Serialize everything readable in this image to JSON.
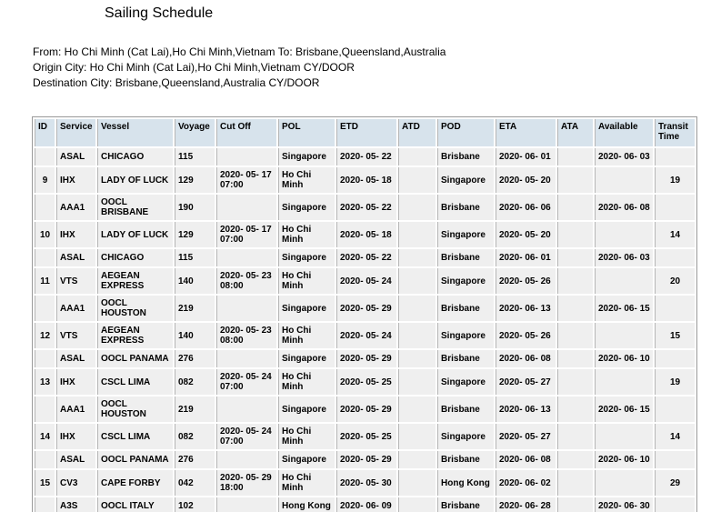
{
  "title": "Sailing Schedule",
  "route_info": {
    "from_to": "From: Ho Chi Minh (Cat Lai),Ho Chi Minh,Vietnam To: Brisbane,Queensland,Australia",
    "origin_city": "Origin City: Ho Chi Minh (Cat Lai),Ho Chi Minh,Vietnam CY/DOOR",
    "destination_city": "Destination City: Brisbane,Queensland,Australia CY/DOOR"
  },
  "colors": {
    "header_bg": "#d7e3ec",
    "cell_bg": "#efefef",
    "grid_line": "#b5b5b5",
    "outer_border": "#9a9a9a"
  },
  "table": {
    "columns": [
      "ID",
      "Service",
      "Vessel",
      "Voyage",
      "Cut Off",
      "POL",
      "ETD",
      "ATD",
      "POD",
      "ETA",
      "ATA",
      "Available",
      "Transit Time"
    ],
    "column_keys": [
      "id",
      "service",
      "vessel",
      "voyage",
      "cut-off",
      "pol",
      "etd",
      "atd",
      "pod",
      "eta",
      "ata",
      "available",
      "transit-time"
    ],
    "rows": [
      [
        "",
        "ASAL",
        "CHICAGO",
        "115",
        "",
        "Singapore",
        "2020- 05- 22",
        "",
        "Brisbane",
        "2020- 06- 01",
        "",
        "2020- 06- 03",
        ""
      ],
      [
        "9",
        "IHX",
        "LADY OF LUCK",
        "129",
        "2020- 05- 17 07:00",
        "Ho Chi Minh",
        "2020- 05- 18",
        "",
        "Singapore",
        "2020- 05- 20",
        "",
        "",
        "19"
      ],
      [
        "",
        "AAA1",
        "OOCL BRISBANE",
        "190",
        "",
        "Singapore",
        "2020- 05- 22",
        "",
        "Brisbane",
        "2020- 06- 06",
        "",
        "2020- 06- 08",
        ""
      ],
      [
        "10",
        "IHX",
        "LADY OF LUCK",
        "129",
        "2020- 05- 17 07:00",
        "Ho Chi Minh",
        "2020- 05- 18",
        "",
        "Singapore",
        "2020- 05- 20",
        "",
        "",
        "14"
      ],
      [
        "",
        "ASAL",
        "CHICAGO",
        "115",
        "",
        "Singapore",
        "2020- 05- 22",
        "",
        "Brisbane",
        "2020- 06- 01",
        "",
        "2020- 06- 03",
        ""
      ],
      [
        "11",
        "VTS",
        "AEGEAN EXPRESS",
        "140",
        "2020- 05- 23 08:00",
        "Ho Chi Minh",
        "2020- 05- 24",
        "",
        "Singapore",
        "2020- 05- 26",
        "",
        "",
        "20"
      ],
      [
        "",
        "AAA1",
        "OOCL HOUSTON",
        "219",
        "",
        "Singapore",
        "2020- 05- 29",
        "",
        "Brisbane",
        "2020- 06- 13",
        "",
        "2020- 06- 15",
        ""
      ],
      [
        "12",
        "VTS",
        "AEGEAN EXPRESS",
        "140",
        "2020- 05- 23 08:00",
        "Ho Chi Minh",
        "2020- 05- 24",
        "",
        "Singapore",
        "2020- 05- 26",
        "",
        "",
        "15"
      ],
      [
        "",
        "ASAL",
        "OOCL PANAMA",
        "276",
        "",
        "Singapore",
        "2020- 05- 29",
        "",
        "Brisbane",
        "2020- 06- 08",
        "",
        "2020- 06- 10",
        ""
      ],
      [
        "13",
        "IHX",
        "CSCL LIMA",
        "082",
        "2020- 05- 24 07:00",
        "Ho Chi Minh",
        "2020- 05- 25",
        "",
        "Singapore",
        "2020- 05- 27",
        "",
        "",
        "19"
      ],
      [
        "",
        "AAA1",
        "OOCL HOUSTON",
        "219",
        "",
        "Singapore",
        "2020- 05- 29",
        "",
        "Brisbane",
        "2020- 06- 13",
        "",
        "2020- 06- 15",
        ""
      ],
      [
        "14",
        "IHX",
        "CSCL LIMA",
        "082",
        "2020- 05- 24 07:00",
        "Ho Chi Minh",
        "2020- 05- 25",
        "",
        "Singapore",
        "2020- 05- 27",
        "",
        "",
        "14"
      ],
      [
        "",
        "ASAL",
        "OOCL PANAMA",
        "276",
        "",
        "Singapore",
        "2020- 05- 29",
        "",
        "Brisbane",
        "2020- 06- 08",
        "",
        "2020- 06- 10",
        ""
      ],
      [
        "15",
        "CV3",
        "CAPE FORBY",
        "042",
        "2020- 05- 29 18:00",
        "Ho Chi Minh",
        "2020- 05- 30",
        "",
        "Hong Kong",
        "2020- 06- 02",
        "",
        "",
        "29"
      ],
      [
        "",
        "A3S",
        "OOCL ITALY",
        "102",
        "",
        "Hong Kong",
        "2020- 06- 09",
        "",
        "Brisbane",
        "2020- 06- 28",
        "",
        "2020- 06- 30",
        ""
      ]
    ]
  }
}
